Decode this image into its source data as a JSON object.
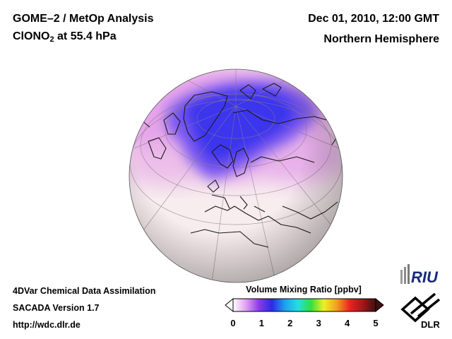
{
  "header": {
    "title": "GOME–2 / MetOp Analysis",
    "species_main": "ClONO",
    "species_sub": "2",
    "species_rest": " at 55.4 hPa",
    "datetime": "Dec 01, 2010, 12:00 GMT",
    "region": "Northern Hemisphere"
  },
  "footer": {
    "line1": "4DVar Chemical Data Assimilation",
    "line2": "SACADA Version 1.7",
    "line3": "http://wdc.dlr.de"
  },
  "colorbar": {
    "title": "Volume Mixing Ratio [ppbv]",
    "ticks": [
      "0",
      "1",
      "2",
      "3",
      "4",
      "5"
    ],
    "range": [
      0,
      5
    ],
    "colors": [
      "#ffffff",
      "#e0a0f0",
      "#8a3ae8",
      "#2a2ae8",
      "#1fa0f0",
      "#20e0e0",
      "#30e040",
      "#f0f020",
      "#f0a020",
      "#f02020",
      "#a01818",
      "#401010"
    ],
    "over_color": "#401010",
    "under_color": "#ffffff"
  },
  "logos": {
    "riu": "RIU",
    "dlr": "DLR"
  },
  "map": {
    "projection": "orthographic",
    "hemisphere": "Northern Hemisphere",
    "features": [
      "coastlines",
      "graticule"
    ],
    "low_color": "#f7ecee",
    "mid_color": "#e8a8ea",
    "high_color": "#4a38f0"
  }
}
